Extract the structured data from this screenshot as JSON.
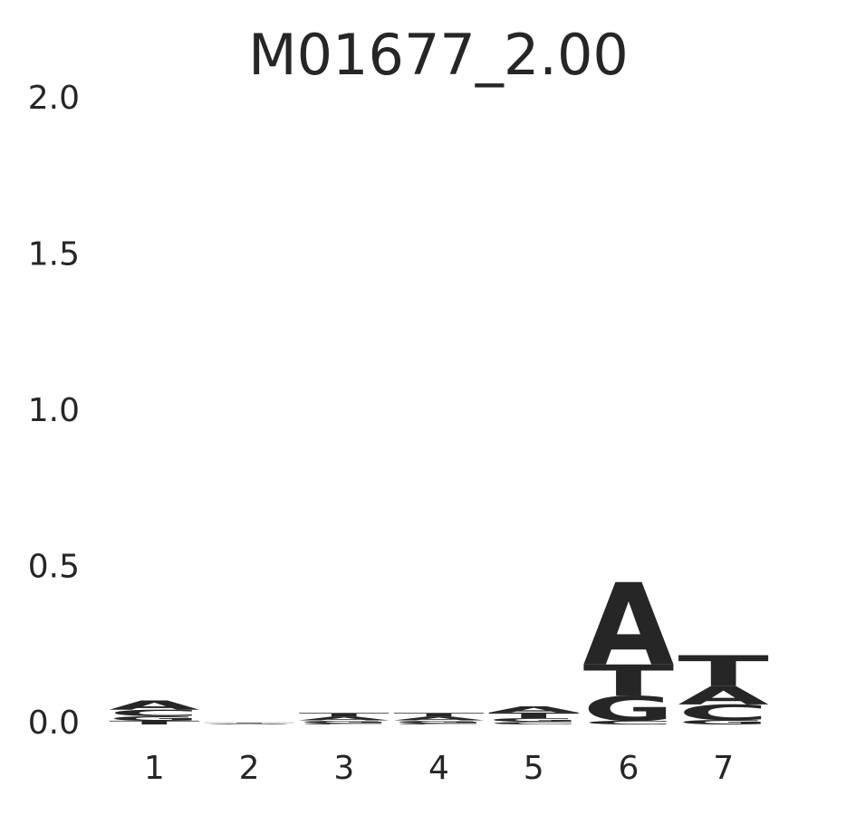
{
  "chart_data": {
    "type": "logo",
    "title": "M01677_2.00",
    "categories": [
      "1",
      "2",
      "3",
      "4",
      "5",
      "6",
      "7"
    ],
    "series": [
      {
        "name": "A",
        "color": "#008000",
        "values": [
          0.03,
          0.001,
          0.012,
          0.012,
          0.02,
          0.264,
          0.058
        ]
      },
      {
        "name": "C",
        "color": "#0000ff",
        "values": [
          0.02,
          0.001,
          0.005,
          0.005,
          0.008,
          0.012,
          0.05
        ]
      },
      {
        "name": "G",
        "color": "#ffa500",
        "values": [
          0.015,
          0.002,
          0.008,
          0.008,
          0.012,
          0.08,
          0.014
        ]
      },
      {
        "name": "T",
        "color": "#ff0000",
        "values": [
          0.012,
          0.002,
          0.012,
          0.012,
          0.018,
          0.1,
          0.1
        ]
      }
    ],
    "ylim": [
      0,
      2
    ],
    "yticks": [
      {
        "value": 0,
        "label": "0.0"
      },
      0.5,
      {
        "value": 1,
        "label": "1.0"
      },
      1.5,
      {
        "value": 2,
        "label": "2.0"
      }
    ]
  }
}
